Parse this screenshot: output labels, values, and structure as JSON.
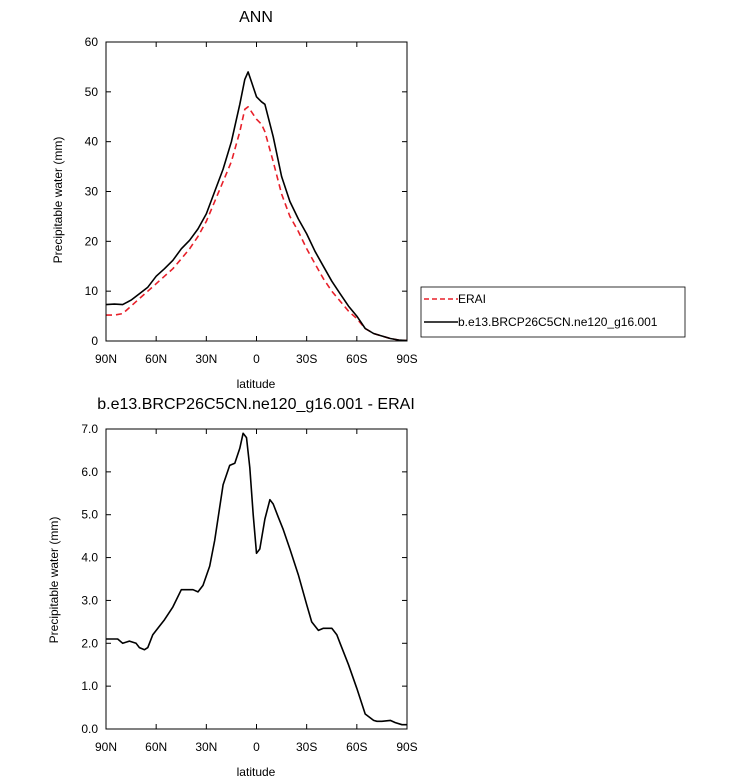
{
  "chart_data": [
    {
      "type": "line",
      "title": "ANN",
      "xlabel": "latitude",
      "ylabel": "Precipitable water (mm)",
      "xlim": [
        90,
        -90
      ],
      "ylim": [
        0,
        60
      ],
      "x_ticks": [
        90,
        60,
        30,
        0,
        -30,
        -60,
        -90
      ],
      "x_tick_labels": [
        "90N",
        "60N",
        "30N",
        "0",
        "30S",
        "60S",
        "90S"
      ],
      "y_ticks": [
        0,
        10,
        20,
        30,
        40,
        50,
        60
      ],
      "y_tick_labels": [
        "0",
        "10",
        "20",
        "30",
        "40",
        "50",
        "60"
      ],
      "legend_position": "right",
      "series": [
        {
          "name": "ERAI",
          "color": "#e8202a",
          "dash": "dashed",
          "x": [
            90,
            85,
            80,
            75,
            70,
            65,
            60,
            55,
            50,
            45,
            40,
            35,
            30,
            25,
            20,
            15,
            10,
            7,
            5,
            3,
            0,
            -3,
            -5,
            -10,
            -15,
            -20,
            -25,
            -30,
            -35,
            -40,
            -45,
            -50,
            -55,
            -60,
            -65,
            -70,
            -75,
            -80,
            -85,
            -90
          ],
          "y": [
            5.2,
            5.2,
            5.5,
            7.0,
            8.5,
            10.0,
            11.5,
            13.0,
            14.5,
            16.5,
            18.5,
            21.0,
            24.0,
            28.0,
            32.0,
            36.0,
            42.0,
            46.5,
            47.0,
            46.0,
            44.5,
            43.5,
            42.0,
            36.0,
            29.5,
            25.0,
            22.0,
            18.5,
            15.5,
            12.5,
            10.0,
            8.0,
            6.0,
            4.5,
            2.5,
            1.5,
            1.0,
            0.5,
            0.2,
            0.1
          ]
        },
        {
          "name": "b.e13.BRCP26C5CN.ne120_g16.001",
          "color": "#000000",
          "dash": "solid",
          "x": [
            90,
            85,
            80,
            75,
            70,
            65,
            60,
            55,
            50,
            45,
            40,
            35,
            30,
            25,
            20,
            15,
            10,
            7,
            5,
            3,
            0,
            -3,
            -5,
            -10,
            -15,
            -20,
            -25,
            -30,
            -35,
            -40,
            -45,
            -50,
            -55,
            -60,
            -65,
            -70,
            -75,
            -80,
            -85,
            -90
          ],
          "y": [
            7.3,
            7.4,
            7.3,
            8.2,
            9.5,
            10.8,
            13.0,
            14.5,
            16.2,
            18.5,
            20.2,
            22.5,
            25.5,
            30.0,
            34.5,
            40.0,
            47.5,
            52.5,
            54.0,
            52.0,
            49.0,
            48.0,
            47.5,
            41.0,
            33.0,
            28.0,
            24.5,
            21.5,
            18.0,
            15.0,
            12.0,
            9.5,
            7.0,
            5.0,
            2.5,
            1.5,
            1.0,
            0.5,
            0.2,
            0.1
          ]
        }
      ]
    },
    {
      "type": "line",
      "title": "b.e13.BRCP26C5CN.ne120_g16.001 - ERAI",
      "xlabel": "latitude",
      "ylabel": "Precipitable water (mm)",
      "xlim": [
        90,
        -90
      ],
      "ylim": [
        0,
        7
      ],
      "x_ticks": [
        90,
        60,
        30,
        0,
        -30,
        -60,
        -90
      ],
      "x_tick_labels": [
        "90N",
        "60N",
        "30N",
        "0",
        "30S",
        "60S",
        "90S"
      ],
      "y_ticks": [
        0,
        1,
        2,
        3,
        4,
        5,
        6,
        7
      ],
      "y_tick_labels": [
        "0.0",
        "1.0",
        "2.0",
        "3.0",
        "4.0",
        "5.0",
        "6.0",
        "7.0"
      ],
      "series": [
        {
          "color": "#000000",
          "dash": "solid",
          "x": [
            90,
            83,
            80,
            76,
            72,
            70,
            67,
            65,
            62,
            58,
            55,
            50,
            45,
            42,
            38,
            35,
            32,
            28,
            25,
            20,
            16,
            13,
            10,
            8,
            6,
            4,
            2,
            0,
            -2,
            -5,
            -8,
            -10,
            -13,
            -16,
            -20,
            -25,
            -30,
            -33,
            -37,
            -40,
            -45,
            -48,
            -50,
            -55,
            -60,
            -65,
            -70,
            -72,
            -75,
            -80,
            -83,
            -87,
            -90
          ],
          "y": [
            2.1,
            2.1,
            2.0,
            2.05,
            2.0,
            1.9,
            1.85,
            1.9,
            2.2,
            2.4,
            2.55,
            2.85,
            3.25,
            3.25,
            3.25,
            3.2,
            3.35,
            3.8,
            4.4,
            5.7,
            6.15,
            6.2,
            6.55,
            6.9,
            6.8,
            6.1,
            5.0,
            4.1,
            4.2,
            4.9,
            5.35,
            5.25,
            4.95,
            4.65,
            4.2,
            3.6,
            2.9,
            2.5,
            2.3,
            2.35,
            2.35,
            2.2,
            2.0,
            1.5,
            0.95,
            0.35,
            0.2,
            0.18,
            0.18,
            0.2,
            0.15,
            0.1,
            0.1
          ]
        }
      ]
    }
  ]
}
